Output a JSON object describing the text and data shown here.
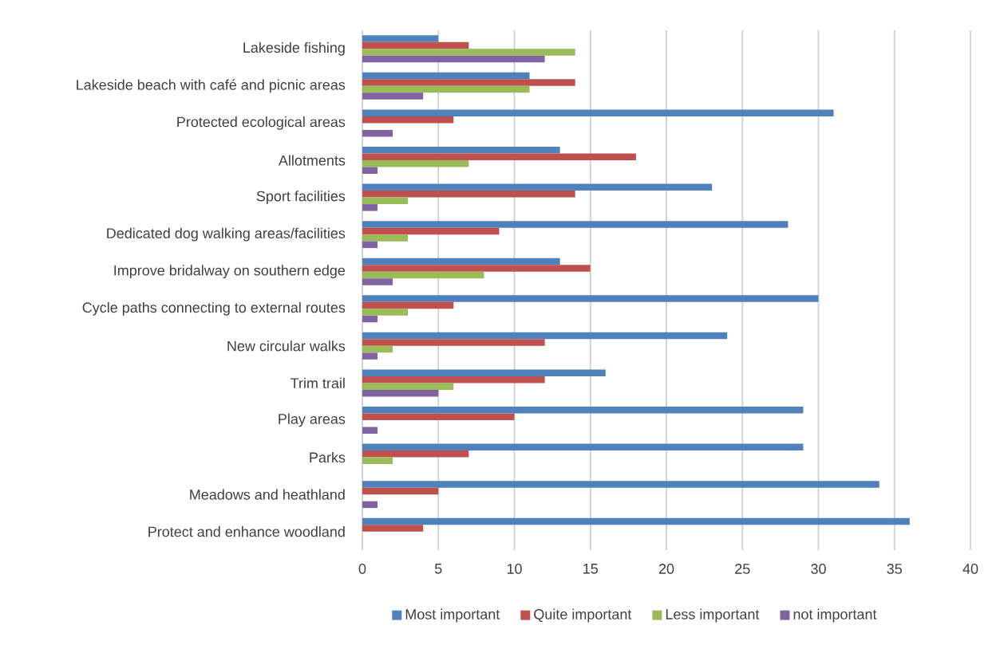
{
  "chart_data": {
    "type": "bar",
    "orientation": "horizontal",
    "categories": [
      "Lakeside fishing",
      "Lakeside beach with café and picnic areas",
      "Protected ecological areas",
      "Allotments",
      "Sport facilities",
      "Dedicated dog walking areas/facilities",
      "Improve bridalway on southern edge",
      "Cycle paths connecting to external routes",
      "New circular walks",
      "Trim trail",
      "Play areas",
      "Parks",
      "Meadows and heathland",
      "Protect and enhance woodland"
    ],
    "series": [
      {
        "name": "Most important",
        "color": "#4f81bd",
        "values": [
          5,
          11,
          31,
          13,
          23,
          28,
          13,
          30,
          24,
          16,
          29,
          29,
          34,
          36
        ]
      },
      {
        "name": "Quite important",
        "color": "#c0504d",
        "values": [
          7,
          14,
          6,
          18,
          14,
          9,
          15,
          6,
          12,
          12,
          10,
          7,
          5,
          4
        ]
      },
      {
        "name": "Less important",
        "color": "#9bbb59",
        "values": [
          14,
          11,
          0,
          7,
          3,
          3,
          8,
          3,
          2,
          6,
          0,
          2,
          0,
          0
        ]
      },
      {
        "name": "not important",
        "color": "#8064a2",
        "values": [
          12,
          4,
          2,
          1,
          1,
          1,
          2,
          1,
          1,
          5,
          1,
          0,
          1,
          0
        ]
      }
    ],
    "xlim": [
      0,
      40
    ],
    "xticks": [
      0,
      5,
      10,
      15,
      20,
      25,
      30,
      35,
      40
    ],
    "grid": "x",
    "legend": "bottom"
  }
}
